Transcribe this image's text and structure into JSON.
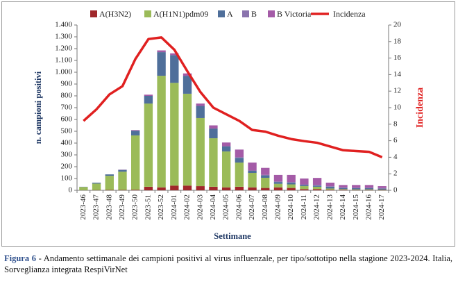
{
  "chart_data": {
    "type": "bar",
    "stacked": true,
    "categories": [
      "2023-46",
      "2023-47",
      "2023-48",
      "2023-49",
      "2023-50",
      "2023-51",
      "2023-52",
      "2024-01",
      "2024-02",
      "2024-03",
      "2024-04",
      "2024-05",
      "2024-06",
      "2024-07",
      "2024-08",
      "2024-09",
      "2024-10",
      "2024-11",
      "2024-12",
      "2024-13",
      "2024-14",
      "2024-15",
      "2024-16",
      "2024-17"
    ],
    "series": [
      {
        "name": "A(H3N2)",
        "color": "#a0282b",
        "values": [
          1,
          2,
          3,
          3,
          5,
          30,
          25,
          40,
          40,
          35,
          30,
          25,
          30,
          25,
          20,
          25,
          20,
          10,
          10,
          5,
          5,
          3,
          3,
          3
        ]
      },
      {
        "name": "A(H1N1)pdm09",
        "color": "#9bbb59",
        "values": [
          27,
          55,
          120,
          155,
          460,
          705,
          945,
          870,
          778,
          577,
          411,
          304,
          205,
          122,
          86,
          30,
          30,
          25,
          20,
          10,
          5,
          5,
          5,
          3
        ]
      },
      {
        "name": "A",
        "color": "#4f6f9a",
        "values": [
          2,
          8,
          12,
          15,
          40,
          65,
          200,
          235,
          152,
          103,
          82,
          44,
          40,
          20,
          20,
          15,
          15,
          10,
          10,
          15,
          10,
          10,
          10,
          8
        ]
      },
      {
        "name": "B",
        "color": "#8a73ad",
        "values": [
          0,
          0,
          0,
          0,
          0,
          0,
          0,
          0,
          0,
          0,
          0,
          0,
          5,
          0,
          5,
          5,
          5,
          5,
          5,
          5,
          5,
          5,
          5,
          5
        ]
      },
      {
        "name": "B Victoria",
        "color": "#a45ba7",
        "values": [
          0,
          0,
          0,
          2,
          5,
          10,
          15,
          15,
          20,
          20,
          27,
          32,
          65,
          68,
          59,
          55,
          60,
          50,
          60,
          30,
          20,
          22,
          22,
          16
        ]
      },
      {
        "name": "Incidenza",
        "color": "#e02020",
        "type": "line",
        "axis": "y2",
        "values": [
          8.4,
          9.8,
          11.6,
          12.6,
          15.9,
          18.3,
          18.5,
          17.0,
          14.4,
          11.9,
          10.0,
          9.2,
          8.4,
          7.3,
          7.1,
          6.6,
          6.2,
          5.95,
          5.75,
          5.3,
          4.85,
          4.75,
          4.65,
          4.0
        ]
      }
    ],
    "ylim": [
      0,
      1400
    ],
    "yticks": [
      0,
      100,
      200,
      300,
      400,
      500,
      600,
      700,
      800,
      900,
      {
        "value": 1000,
        "label": "1.000"
      },
      {
        "value": 1100,
        "label": "1.100"
      },
      {
        "value": 1200,
        "label": "1.200"
      },
      {
        "value": 1300,
        "label": "1.300"
      },
      {
        "value": 1400,
        "label": "1.400"
      }
    ],
    "y2lim": [
      0,
      20
    ],
    "y2ticks": [
      0,
      2,
      4,
      6,
      8,
      10,
      12,
      14,
      16,
      18,
      20
    ],
    "grid": false,
    "legend": "top",
    "ylabel": "n. campioni positivi",
    "y2label": "Incidenza",
    "xlabel": "Settimane",
    "caption_label": "Figura 6",
    "caption": "- Andamento settimanale dei campioni positivi al virus influenzale, per tipo/sottotipo nella stagione 2023-2024. Italia, Sorveglianza integrata RespiVirNet"
  }
}
